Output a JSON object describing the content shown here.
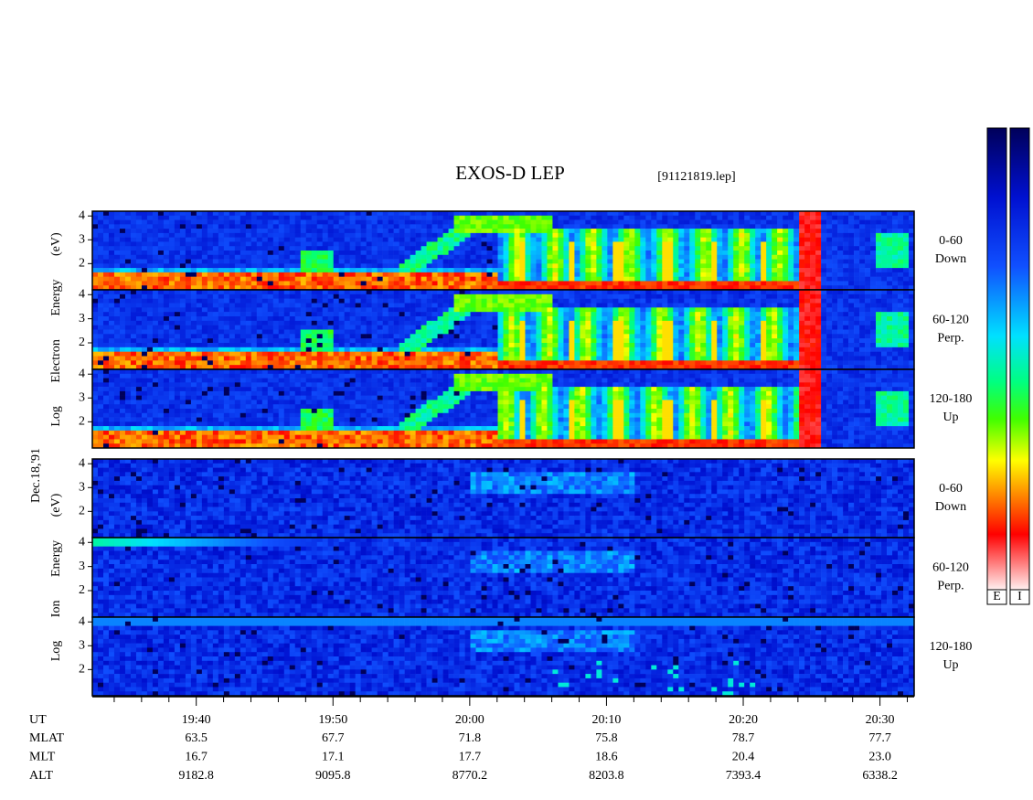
{
  "title": "EXOS-D LEP",
  "file": "[91121819.lep]",
  "date": "Dec.18,'91",
  "chart_data": {
    "type": "spectrogram",
    "xlim": [
      32.4,
      92.5
    ],
    "xticks": [
      {
        "value": 40,
        "label": "19:40"
      },
      {
        "value": 50,
        "label": "19:50"
      },
      {
        "value": 60,
        "label": "20:00"
      },
      {
        "value": 70,
        "label": "20:10"
      },
      {
        "value": 80,
        "label": "20:20"
      },
      {
        "value": 90,
        "label": "20:30"
      }
    ],
    "xminor_ticks": [
      34,
      36,
      38,
      42,
      44,
      46,
      48,
      52,
      54,
      56,
      58,
      62,
      64,
      66,
      68,
      72,
      74,
      76,
      78,
      82,
      84,
      86,
      88,
      92
    ],
    "groups": [
      {
        "axis_label": "Log Electron Energy (eV)",
        "ylim": [
          0.9,
          4.2
        ],
        "yticks": [
          2,
          3,
          4
        ],
        "panels": [
          {
            "channel": "0-60",
            "direction": "Down"
          },
          {
            "channel": "60-120",
            "direction": "Perp."
          },
          {
            "channel": "120-180",
            "direction": "Up"
          }
        ]
      },
      {
        "axis_label": "Log Ion Energy (eV)",
        "ylim": [
          0.9,
          4.2
        ],
        "yticks": [
          2,
          3,
          4
        ],
        "panels": [
          {
            "channel": "0-60",
            "direction": "Down"
          },
          {
            "channel": "60-120",
            "direction": "Perp."
          },
          {
            "channel": "120-180",
            "direction": "Up"
          }
        ]
      }
    ],
    "colorbar": {
      "labels": [
        "E",
        "I"
      ]
    },
    "orbit": {
      "time_label": "UT",
      "rows": [
        {
          "label": "MLAT",
          "values": [
            "63.5",
            "67.7",
            "71.8",
            "75.8",
            "78.7",
            "77.7"
          ]
        },
        {
          "label": "MLT",
          "values": [
            "16.7",
            "17.1",
            "17.7",
            "18.6",
            "20.4",
            "23.0"
          ]
        },
        {
          "label": "ALT",
          "values": [
            "9182.8",
            "9095.8",
            "8770.2",
            "8203.8",
            "7393.4",
            "6338.2"
          ]
        }
      ]
    }
  }
}
